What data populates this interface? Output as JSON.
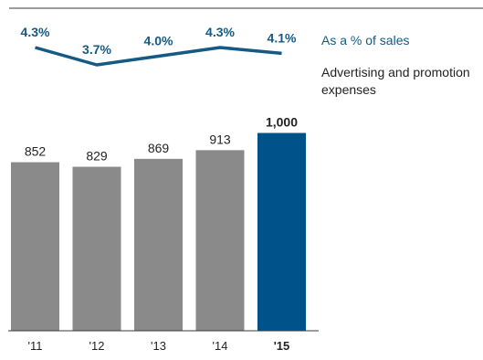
{
  "colors": {
    "bar": "#8a8a8a",
    "bar_highlight": "#00538a",
    "line": "#145a84",
    "text": "#222222",
    "rule": "#3a3a3a"
  },
  "legend": {
    "line_label": "As a % of sales",
    "bar_label": "Advertising and promotion expenses"
  },
  "chart_data": {
    "type": "bar",
    "categories": [
      "'11",
      "'12",
      "'13",
      "'14",
      "'15"
    ],
    "series": [
      {
        "name": "Advertising and promotion expenses",
        "type": "bar",
        "values": [
          852,
          829,
          869,
          913,
          1000
        ],
        "value_labels": [
          "852",
          "829",
          "869",
          "913",
          "1,000"
        ]
      },
      {
        "name": "As a % of sales",
        "type": "line",
        "values": [
          4.3,
          3.7,
          4.0,
          4.3,
          4.1
        ],
        "value_labels": [
          "4.3%",
          "3.7%",
          "4.0%",
          "4.3%",
          "4.1%"
        ]
      }
    ],
    "highlight_index": 4,
    "grid": false,
    "legend_position": "right"
  }
}
